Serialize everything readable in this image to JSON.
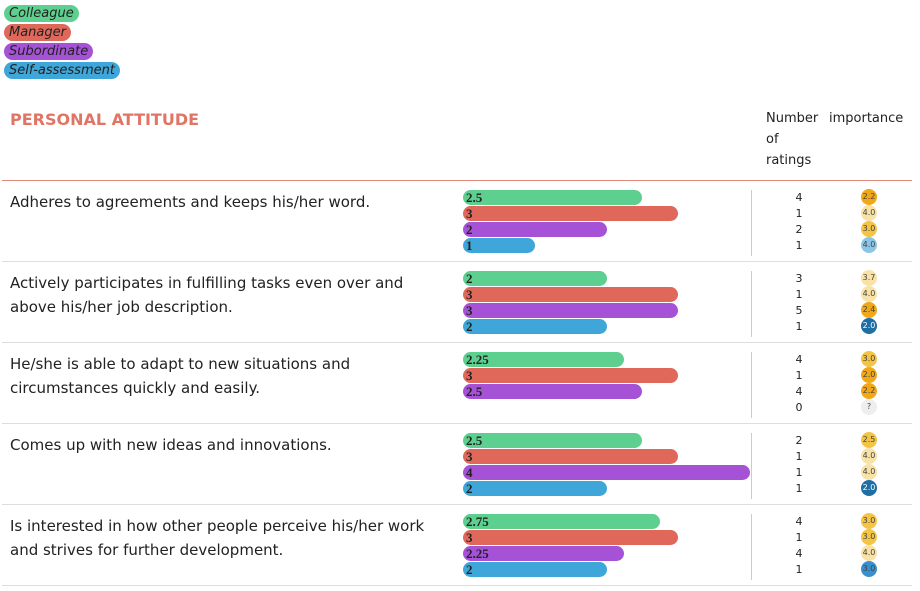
{
  "legend": [
    {
      "name": "Colleague",
      "color": "#5dcf8e"
    },
    {
      "name": "Manager",
      "color": "#e0685a"
    },
    {
      "name": "Subordinate",
      "color": "#a552d6"
    },
    {
      "name": "Self-assessment",
      "color": "#3ea6d8"
    }
  ],
  "section": {
    "title": "PERSONAL ATTITUDE",
    "headers": [
      "Number of ratings",
      "importance"
    ]
  },
  "table": {
    "xlim": [
      0,
      4
    ],
    "rows": [
      {
        "question": "Adheres to agreements and keeps his/her word.",
        "ratings": [
          {
            "value": 2.5,
            "count": 4,
            "importance": {
              "label": "2.2",
              "color": "#f0a818"
            }
          },
          {
            "value": 3,
            "count": 1,
            "importance": {
              "label": "4.0",
              "color": "#f8e2a6"
            }
          },
          {
            "value": 2,
            "count": 2,
            "importance": {
              "label": "3.0",
              "color": "#f4c446"
            }
          },
          {
            "value": 1,
            "count": 1,
            "importance": {
              "label": "4.0",
              "color": "#8cc6e6"
            }
          }
        ]
      },
      {
        "question": "Actively participates in fulfilling tasks even over and above his/her job description.",
        "ratings": [
          {
            "value": 2,
            "count": 3,
            "importance": {
              "label": "3.7",
              "color": "#f8e2a6"
            }
          },
          {
            "value": 3,
            "count": 1,
            "importance": {
              "label": "4.0",
              "color": "#f8e2a6"
            }
          },
          {
            "value": 3,
            "count": 5,
            "importance": {
              "label": "2.4",
              "color": "#f0a818"
            }
          },
          {
            "value": 2,
            "count": 1,
            "importance": {
              "label": "2.0",
              "color": "#1f6fa5"
            }
          }
        ]
      },
      {
        "question": "He/she is able to adapt to new situations and circumstances quickly and easily.",
        "ratings": [
          {
            "value": 2.25,
            "count": 4,
            "importance": {
              "label": "3.0",
              "color": "#f4c446"
            }
          },
          {
            "value": 3,
            "count": 1,
            "importance": {
              "label": "2.0",
              "color": "#f0a818"
            }
          },
          {
            "value": 2.5,
            "count": 4,
            "importance": {
              "label": "2.2",
              "color": "#f0a818"
            }
          },
          {
            "value": null,
            "count": 0,
            "importance": {
              "label": "?",
              "color": "#eeeeee"
            }
          }
        ]
      },
      {
        "question": "Comes up with new ideas and innovations.",
        "ratings": [
          {
            "value": 2.5,
            "count": 2,
            "importance": {
              "label": "2.5",
              "color": "#f4c446"
            }
          },
          {
            "value": 3,
            "count": 1,
            "importance": {
              "label": "4.0",
              "color": "#f8e2a6"
            }
          },
          {
            "value": 4,
            "count": 1,
            "importance": {
              "label": "4.0",
              "color": "#f8e2a6"
            }
          },
          {
            "value": 2,
            "count": 1,
            "importance": {
              "label": "2.0",
              "color": "#1f6fa5"
            }
          }
        ]
      },
      {
        "question": "Is interested in how other people perceive his/her work and strives for further development.",
        "ratings": [
          {
            "value": 2.75,
            "count": 4,
            "importance": {
              "label": "3.0",
              "color": "#f4c446"
            }
          },
          {
            "value": 3,
            "count": 1,
            "importance": {
              "label": "3.0",
              "color": "#f4c446"
            }
          },
          {
            "value": 2.25,
            "count": 4,
            "importance": {
              "label": "4.0",
              "color": "#f8e2a6"
            }
          },
          {
            "value": 2,
            "count": 1,
            "importance": {
              "label": "3.0",
              "color": "#3a8fcf"
            }
          }
        ]
      }
    ]
  }
}
